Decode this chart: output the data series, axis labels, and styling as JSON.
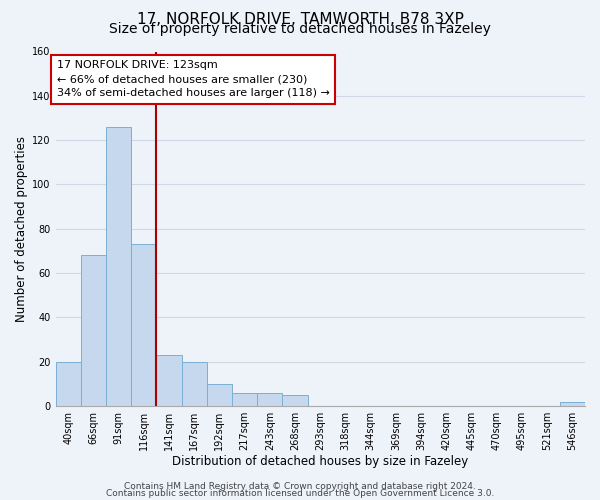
{
  "title1": "17, NORFOLK DRIVE, TAMWORTH, B78 3XP",
  "title2": "Size of property relative to detached houses in Fazeley",
  "xlabel": "Distribution of detached houses by size in Fazeley",
  "ylabel": "Number of detached properties",
  "bar_color": "#c5d8ed",
  "bar_edge_color": "#7aafd4",
  "tick_labels": [
    "40sqm",
    "66sqm",
    "91sqm",
    "116sqm",
    "141sqm",
    "167sqm",
    "192sqm",
    "217sqm",
    "243sqm",
    "268sqm",
    "293sqm",
    "318sqm",
    "344sqm",
    "369sqm",
    "394sqm",
    "420sqm",
    "445sqm",
    "470sqm",
    "495sqm",
    "521sqm",
    "546sqm"
  ],
  "bar_values": [
    20,
    68,
    126,
    73,
    23,
    20,
    10,
    6,
    6,
    5,
    0,
    0,
    0,
    0,
    0,
    0,
    0,
    0,
    0,
    0,
    2
  ],
  "redline_x": 3,
  "highlight_color": "#aa0000",
  "annotation_text": "17 NORFOLK DRIVE: 123sqm\n← 66% of detached houses are smaller (230)\n34% of semi-detached houses are larger (118) →",
  "annotation_box_color": "#ffffff",
  "annotation_box_edge": "#cc0000",
  "ylim": [
    0,
    160
  ],
  "yticks": [
    0,
    20,
    40,
    60,
    80,
    100,
    120,
    140,
    160
  ],
  "footer1": "Contains HM Land Registry data © Crown copyright and database right 2024.",
  "footer2": "Contains public sector information licensed under the Open Government Licence 3.0.",
  "background_color": "#eef2f9",
  "grid_color": "#d0d8e8",
  "title_fontsize": 11,
  "subtitle_fontsize": 10,
  "axis_label_fontsize": 8.5,
  "tick_fontsize": 7,
  "annotation_fontsize": 8,
  "footer_fontsize": 6.5
}
